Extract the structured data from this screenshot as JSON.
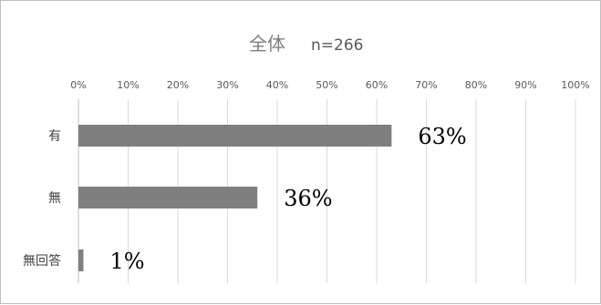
{
  "chart_data": {
    "type": "bar",
    "orientation": "horizontal",
    "title": "全体",
    "subtitle": "n=266",
    "categories": [
      "有",
      "無",
      "無回答"
    ],
    "values": [
      63,
      36,
      1
    ],
    "data_labels": [
      "63%",
      "36%",
      "1%"
    ],
    "x_ticks": [
      "0%",
      "10%",
      "20%",
      "30%",
      "40%",
      "50%",
      "60%",
      "70%",
      "80%",
      "90%",
      "100%"
    ],
    "xlim": [
      0,
      100
    ],
    "xlabel": "",
    "ylabel": "",
    "grid": true,
    "x_axis_position": "top",
    "bar_color": "#7f7f7f",
    "grid_color": "#d9d9d9"
  }
}
